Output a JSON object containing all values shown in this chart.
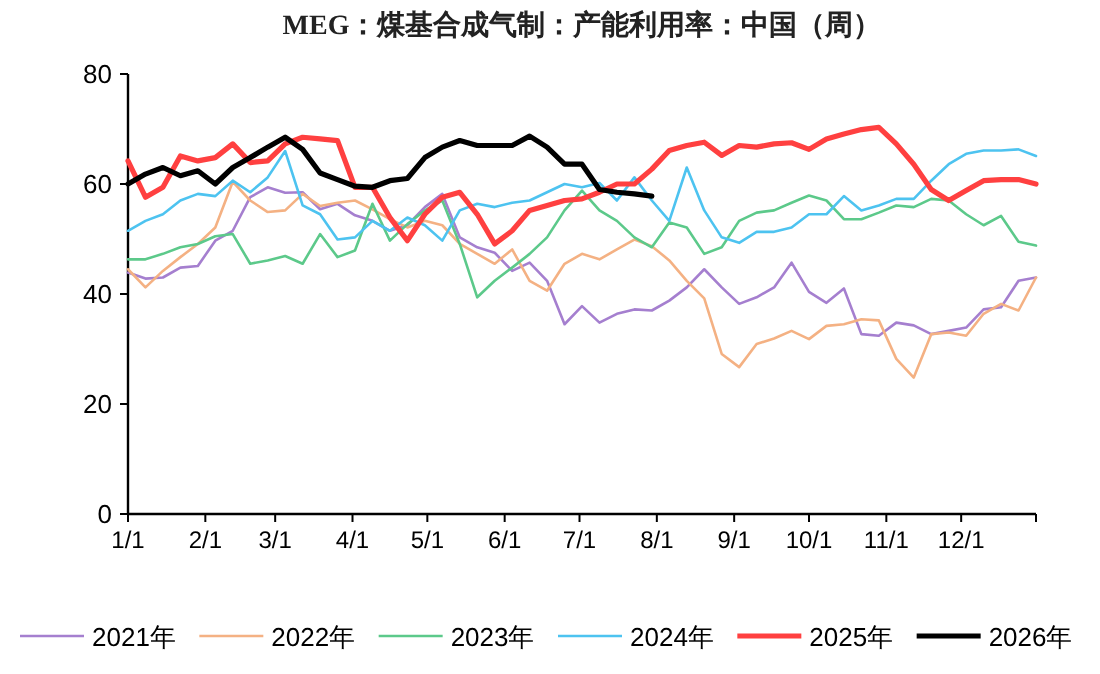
{
  "chart_data": {
    "type": "line",
    "title": "MEG：煤基合成气制：产能利用率：中国（周）",
    "x": [
      "--01-01",
      "--01-08",
      "--01-15",
      "--01-22",
      "--01-29",
      "--02-05",
      "--02-12",
      "--02-19",
      "--02-26",
      "--03-05",
      "--03-12",
      "--03-19",
      "--03-26",
      "--04-02",
      "--04-09",
      "--04-16",
      "--04-23",
      "--04-30",
      "--05-07",
      "--05-14",
      "--05-21",
      "--05-28",
      "--06-04",
      "--06-11",
      "--06-18",
      "--06-25",
      "--07-02",
      "--07-09",
      "--07-16",
      "--07-23",
      "--07-30",
      "--08-06",
      "--08-13",
      "--08-20",
      "--08-27",
      "--09-03",
      "--09-10",
      "--09-17",
      "--09-24",
      "--10-01",
      "--10-08",
      "--10-15",
      "--10-22",
      "--10-29",
      "--11-05",
      "--11-12",
      "--11-19",
      "--11-26",
      "--12-03",
      "--12-10",
      "--12-17",
      "--12-24",
      "--12-31"
    ],
    "xlim": [
      "--01-01",
      "--12-31"
    ],
    "xticks": [
      {
        "value": "--01-01",
        "label": "1/1"
      },
      {
        "value": "--02-01",
        "label": "2/1"
      },
      {
        "value": "--03-01",
        "label": "3/1"
      },
      {
        "value": "--04-01",
        "label": "4/1"
      },
      {
        "value": "--05-01",
        "label": "5/1"
      },
      {
        "value": "--06-01",
        "label": "6/1"
      },
      {
        "value": "--07-01",
        "label": "7/1"
      },
      {
        "value": "--08-01",
        "label": "8/1"
      },
      {
        "value": "--09-01",
        "label": "9/1"
      },
      {
        "value": "--10-01",
        "label": "10/1"
      },
      {
        "value": "--11-01",
        "label": "11/1"
      },
      {
        "value": "--12-01",
        "label": "12/1"
      }
    ],
    "ylim": [
      0,
      80
    ],
    "yticks": [
      0,
      20,
      40,
      60,
      80
    ],
    "grid": false,
    "legend": "bottom",
    "series": [
      {
        "name": "2021年",
        "color": "#a57fcf",
        "values": [
          43.9,
          42.8,
          43,
          44.8,
          45.1,
          49.7,
          51.5,
          57.6,
          59.4,
          58.4,
          58.5,
          55.4,
          56.4,
          54.3,
          53.3,
          51.5,
          52.5,
          55.8,
          58.2,
          50.3,
          48.5,
          47.5,
          44.2,
          45.7,
          42.4,
          34.5,
          37.8,
          34.8,
          36.4,
          37.2,
          37,
          38.8,
          41.2,
          44.5,
          41.2,
          38.2,
          39.4,
          41.2,
          45.7,
          40.4,
          38.4,
          41,
          32.7,
          32.4,
          34.8,
          34.3,
          32.7,
          33.3,
          33.9,
          37.2,
          37.6,
          42.4,
          43
        ]
      },
      {
        "name": "2022年",
        "color": "#f4b183",
        "values": [
          44.5,
          41.2,
          44.2,
          46.7,
          49.1,
          52.1,
          60.4,
          57,
          54.9,
          55.2,
          58.2,
          56,
          56.6,
          57,
          55.4,
          53.6,
          52.1,
          53.3,
          52.5,
          49.1,
          47.3,
          45.5,
          48.1,
          42.4,
          40.6,
          45.5,
          47.3,
          46.3,
          48.1,
          49.9,
          48.7,
          46.1,
          42.4,
          39.2,
          29.1,
          26.7,
          30.9,
          31.9,
          33.3,
          31.8,
          34.2,
          34.5,
          35.4,
          35.2,
          28.2,
          24.8,
          32.7,
          33,
          32.4,
          36.4,
          38.2,
          37,
          43
        ]
      },
      {
        "name": "2023年",
        "color": "#5cc98a",
        "values": [
          46.3,
          46.3,
          47.3,
          48.5,
          49.1,
          50.5,
          50.9,
          45.5,
          46.1,
          46.9,
          45.5,
          50.9,
          46.7,
          47.9,
          56.4,
          49.7,
          52.7,
          55.2,
          57,
          49.1,
          39.4,
          42.4,
          44.8,
          47.3,
          50.3,
          55.2,
          58.8,
          55.2,
          53.3,
          50.3,
          48.5,
          53,
          52.1,
          47.3,
          48.5,
          53.3,
          54.8,
          55.2,
          56.6,
          57.9,
          57,
          53.6,
          53.6,
          54.8,
          56.1,
          55.8,
          57.3,
          57,
          54.5,
          52.5,
          54.2,
          49.5,
          48.8
        ]
      },
      {
        "name": "2024年",
        "color": "#4dc3f0",
        "values": [
          51.5,
          53.3,
          54.5,
          57,
          58.2,
          57.8,
          60.6,
          58.5,
          61.2,
          66,
          56.1,
          54.5,
          49.9,
          50.3,
          53.3,
          51.5,
          53.9,
          52.5,
          49.7,
          55.2,
          56.4,
          55.8,
          56.6,
          57,
          58.5,
          60,
          59.4,
          60.2,
          57,
          61.2,
          57,
          53.3,
          63,
          55.2,
          50.3,
          49.3,
          51.3,
          51.3,
          52.1,
          54.5,
          54.5,
          57.8,
          55.2,
          56.1,
          57.3,
          57.3,
          60.6,
          63.6,
          65.5,
          66.1,
          66.1,
          66.3,
          65.1
        ]
      },
      {
        "name": "2025年",
        "color": "#ff4040",
        "values": [
          64.2,
          57.6,
          59.4,
          65.1,
          64.2,
          64.8,
          67.3,
          63.9,
          64.2,
          67.3,
          68.5,
          68.2,
          67.9,
          59.4,
          59.4,
          53.9,
          49.7,
          54.5,
          57.6,
          58.5,
          54.5,
          49.1,
          51.5,
          55.2,
          56.1,
          57,
          57.3,
          58.5,
          60,
          60,
          62.7,
          66.1,
          67,
          67.6,
          65.2,
          67,
          66.7,
          67.3,
          67.5,
          66.3,
          68.2,
          69.1,
          69.9,
          70.3,
          67.3,
          63.6,
          59,
          57,
          58.8,
          60.6,
          60.8,
          60.8,
          60
        ]
      },
      {
        "name": "2026年",
        "color": "#000000",
        "values": [
          60,
          61.8,
          63,
          61.5,
          62.4,
          60,
          63,
          64.8,
          66.7,
          68.5,
          66.3,
          62,
          60.8,
          59.6,
          59.4,
          60.6,
          61,
          64.8,
          66.7,
          67.9,
          67,
          67,
          67,
          68.7,
          66.7,
          63.6,
          63.6,
          59,
          58.5,
          58.2,
          57.8,
          null,
          null,
          null,
          null,
          null,
          null,
          null,
          null,
          null,
          null,
          null,
          null,
          null,
          null,
          null,
          null,
          null,
          null,
          null,
          null,
          null,
          null
        ]
      }
    ]
  }
}
